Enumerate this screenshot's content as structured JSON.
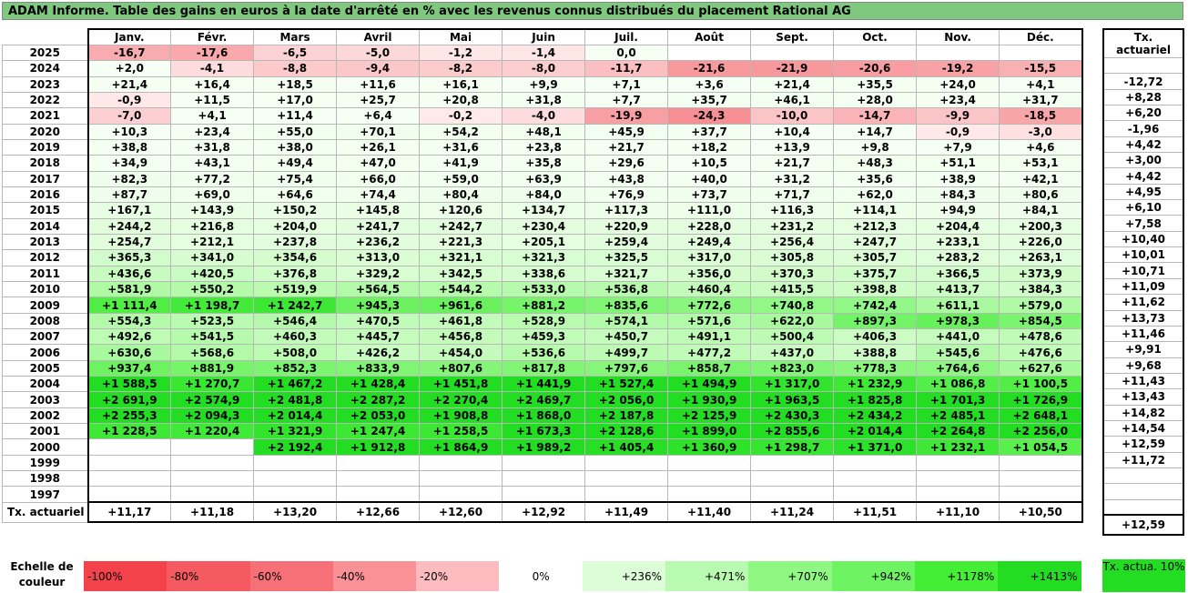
{
  "title": "ADAM Informe. Table des gains en euros à la date d'arrêté en % avec les revenus connus distribués du placement Rational AG",
  "months": [
    "Janv.",
    "Févr.",
    "Mars",
    "Avril",
    "Mai",
    "Juin",
    "Juil.",
    "Août",
    "Sept.",
    "Oct.",
    "Nov.",
    "Déc."
  ],
  "act_header": "Tx. actuariel",
  "rows": [
    {
      "year": "2025",
      "values": [
        "-16,7",
        "-17,6",
        "-6,5",
        "-5,0",
        "-1,2",
        "-1,4",
        "0,0",
        "",
        "",
        "",
        "",
        ""
      ],
      "act": ""
    },
    {
      "year": "2024",
      "values": [
        "+2,0",
        "-4,1",
        "-8,8",
        "-9,4",
        "-8,2",
        "-8,0",
        "-11,7",
        "-21,6",
        "-21,9",
        "-20,6",
        "-19,2",
        "-15,5"
      ],
      "act": "-12,72"
    },
    {
      "year": "2023",
      "values": [
        "+21,4",
        "+16,4",
        "+18,5",
        "+11,6",
        "+16,1",
        "+9,9",
        "+7,1",
        "+3,6",
        "+21,4",
        "+35,5",
        "+24,0",
        "+4,1"
      ],
      "act": "+8,28"
    },
    {
      "year": "2022",
      "values": [
        "-0,9",
        "+11,5",
        "+17,0",
        "+25,7",
        "+20,8",
        "+31,8",
        "+7,7",
        "+35,7",
        "+46,1",
        "+28,0",
        "+23,4",
        "+31,7"
      ],
      "act": "+6,20"
    },
    {
      "year": "2021",
      "values": [
        "-7,0",
        "+4,1",
        "+11,4",
        "+6,4",
        "-0,2",
        "-4,0",
        "-19,9",
        "-24,3",
        "-10,0",
        "-14,7",
        "-9,9",
        "-18,5"
      ],
      "act": "-1,96"
    },
    {
      "year": "2020",
      "values": [
        "+10,3",
        "+23,4",
        "+55,0",
        "+70,1",
        "+54,2",
        "+48,1",
        "+45,9",
        "+37,7",
        "+10,4",
        "+14,7",
        "-0,9",
        "-3,0"
      ],
      "act": "+4,42"
    },
    {
      "year": "2019",
      "values": [
        "+38,8",
        "+31,8",
        "+38,0",
        "+26,1",
        "+31,6",
        "+23,8",
        "+21,7",
        "+18,2",
        "+13,9",
        "+9,8",
        "+7,9",
        "+4,6"
      ],
      "act": "+3,00"
    },
    {
      "year": "2018",
      "values": [
        "+34,9",
        "+43,1",
        "+49,4",
        "+47,0",
        "+41,9",
        "+35,8",
        "+29,6",
        "+10,5",
        "+21,7",
        "+48,3",
        "+51,1",
        "+53,1"
      ],
      "act": "+4,42"
    },
    {
      "year": "2017",
      "values": [
        "+82,3",
        "+77,2",
        "+75,4",
        "+66,0",
        "+59,0",
        "+63,9",
        "+43,8",
        "+40,0",
        "+31,2",
        "+35,6",
        "+38,9",
        "+42,1"
      ],
      "act": "+4,95"
    },
    {
      "year": "2016",
      "values": [
        "+87,7",
        "+69,0",
        "+64,6",
        "+74,4",
        "+80,4",
        "+84,0",
        "+76,9",
        "+73,7",
        "+71,7",
        "+62,0",
        "+84,3",
        "+80,6"
      ],
      "act": "+6,10"
    },
    {
      "year": "2015",
      "values": [
        "+167,1",
        "+143,9",
        "+150,2",
        "+145,8",
        "+120,6",
        "+134,7",
        "+117,3",
        "+111,0",
        "+116,3",
        "+114,1",
        "+94,9",
        "+84,1"
      ],
      "act": "+7,58"
    },
    {
      "year": "2014",
      "values": [
        "+244,2",
        "+216,8",
        "+204,0",
        "+241,7",
        "+242,7",
        "+230,4",
        "+220,9",
        "+228,0",
        "+231,2",
        "+212,3",
        "+204,4",
        "+200,3"
      ],
      "act": "+10,40"
    },
    {
      "year": "2013",
      "values": [
        "+254,7",
        "+212,1",
        "+237,8",
        "+236,2",
        "+221,3",
        "+205,1",
        "+259,4",
        "+249,4",
        "+256,4",
        "+247,7",
        "+233,1",
        "+226,0"
      ],
      "act": "+10,01"
    },
    {
      "year": "2012",
      "values": [
        "+365,3",
        "+341,0",
        "+354,6",
        "+313,0",
        "+321,1",
        "+321,3",
        "+325,5",
        "+317,0",
        "+305,8",
        "+305,7",
        "+283,2",
        "+263,1"
      ],
      "act": "+10,71"
    },
    {
      "year": "2011",
      "values": [
        "+436,6",
        "+420,5",
        "+376,8",
        "+329,2",
        "+342,5",
        "+338,6",
        "+321,7",
        "+356,0",
        "+370,3",
        "+375,7",
        "+366,5",
        "+373,9"
      ],
      "act": "+11,09"
    },
    {
      "year": "2010",
      "values": [
        "+581,9",
        "+550,2",
        "+519,9",
        "+564,5",
        "+544,2",
        "+533,0",
        "+536,8",
        "+460,4",
        "+415,5",
        "+398,8",
        "+413,7",
        "+384,3"
      ],
      "act": "+11,62"
    },
    {
      "year": "2009",
      "values": [
        "+1 111,4",
        "+1 198,7",
        "+1 242,7",
        "+945,3",
        "+961,6",
        "+881,2",
        "+835,6",
        "+772,6",
        "+740,8",
        "+742,4",
        "+611,1",
        "+579,0"
      ],
      "act": "+13,73"
    },
    {
      "year": "2008",
      "values": [
        "+554,3",
        "+523,5",
        "+546,4",
        "+470,5",
        "+461,8",
        "+528,9",
        "+574,1",
        "+571,6",
        "+622,0",
        "+897,3",
        "+978,3",
        "+854,5"
      ],
      "act": "+11,46"
    },
    {
      "year": "2007",
      "values": [
        "+492,6",
        "+541,5",
        "+460,3",
        "+445,7",
        "+456,8",
        "+459,3",
        "+450,7",
        "+491,1",
        "+500,4",
        "+406,3",
        "+441,0",
        "+478,6"
      ],
      "act": "+9,91"
    },
    {
      "year": "2006",
      "values": [
        "+630,6",
        "+568,6",
        "+508,0",
        "+426,2",
        "+454,0",
        "+536,6",
        "+499,7",
        "+477,2",
        "+437,0",
        "+388,8",
        "+545,6",
        "+476,6"
      ],
      "act": "+9,68"
    },
    {
      "year": "2005",
      "values": [
        "+937,4",
        "+881,9",
        "+852,3",
        "+833,9",
        "+807,6",
        "+817,8",
        "+797,6",
        "+858,7",
        "+823,0",
        "+778,3",
        "+764,6",
        "+627,6"
      ],
      "act": "+11,43"
    },
    {
      "year": "2004",
      "values": [
        "+1 588,5",
        "+1 270,7",
        "+1 467,2",
        "+1 428,4",
        "+1 451,8",
        "+1 441,9",
        "+1 527,4",
        "+1 494,9",
        "+1 317,0",
        "+1 232,9",
        "+1 086,8",
        "+1 100,5"
      ],
      "act": "+13,43"
    },
    {
      "year": "2003",
      "values": [
        "+2 691,9",
        "+2 574,9",
        "+2 481,8",
        "+2 287,2",
        "+2 270,4",
        "+2 469,7",
        "+2 056,0",
        "+1 930,9",
        "+1 963,5",
        "+1 825,8",
        "+1 701,3",
        "+1 726,9"
      ],
      "act": "+14,82"
    },
    {
      "year": "2002",
      "values": [
        "+2 255,3",
        "+2 094,3",
        "+2 014,4",
        "+2 053,0",
        "+1 908,8",
        "+1 868,0",
        "+2 187,8",
        "+2 125,9",
        "+2 430,3",
        "+2 434,2",
        "+2 485,1",
        "+2 648,1"
      ],
      "act": "+14,54"
    },
    {
      "year": "2001",
      "values": [
        "+1 228,5",
        "+1 220,4",
        "+1 321,9",
        "+1 247,4",
        "+1 258,5",
        "+1 673,3",
        "+2 128,6",
        "+1 899,0",
        "+2 855,6",
        "+2 014,4",
        "+2 264,8",
        "+2 256,0"
      ],
      "act": "+12,59"
    },
    {
      "year": "2000",
      "values": [
        "",
        "",
        "+2 192,4",
        "+1 912,8",
        "+1 864,9",
        "+1 989,2",
        "+1 405,4",
        "+1 360,9",
        "+1 298,7",
        "+1 371,0",
        "+1 232,1",
        "+1 054,5"
      ],
      "act": "+11,72"
    },
    {
      "year": "1999",
      "values": [
        "",
        "",
        "",
        "",
        "",
        "",
        "",
        "",
        "",
        "",
        "",
        ""
      ],
      "act": ""
    },
    {
      "year": "1998",
      "values": [
        "",
        "",
        "",
        "",
        "",
        "",
        "",
        "",
        "",
        "",
        "",
        ""
      ],
      "act": ""
    },
    {
      "year": "1997",
      "values": [
        "",
        "",
        "",
        "",
        "",
        "",
        "",
        "",
        "",
        "",
        "",
        ""
      ],
      "act": ""
    }
  ],
  "footer": {
    "label": "Tx. actuariel",
    "values": [
      "+11,17",
      "+11,18",
      "+13,20",
      "+12,66",
      "+12,60",
      "+12,92",
      "+11,49",
      "+11,40",
      "+11,24",
      "+11,51",
      "+11,10",
      "+10,50"
    ],
    "act": "+12,59"
  },
  "legend": {
    "label": "Echelle de couleur",
    "items": [
      {
        "text": "-100%",
        "color": "#f4424a",
        "align": "left"
      },
      {
        "text": "-80%",
        "color": "#f55a60",
        "align": "left"
      },
      {
        "text": "-60%",
        "color": "#f77078",
        "align": "left"
      },
      {
        "text": "-40%",
        "color": "#f99196",
        "align": "left"
      },
      {
        "text": "-20%",
        "color": "#fcbcbf",
        "align": "left"
      },
      {
        "text": "0%",
        "color": "#ffffff",
        "align": "center"
      },
      {
        "text": "+236%",
        "color": "#ddfdd8",
        "align": "right"
      },
      {
        "text": "+471%",
        "color": "#b8fbb0",
        "align": "right"
      },
      {
        "text": "+707%",
        "color": "#8ef882",
        "align": "right"
      },
      {
        "text": "+942%",
        "color": "#6ef462",
        "align": "right"
      },
      {
        "text": "+1178%",
        "color": "#44ee34",
        "align": "right"
      },
      {
        "text": "+1413%",
        "color": "#22dd22",
        "align": "right"
      }
    ],
    "act_text": "Tx. actua. 10%"
  }
}
